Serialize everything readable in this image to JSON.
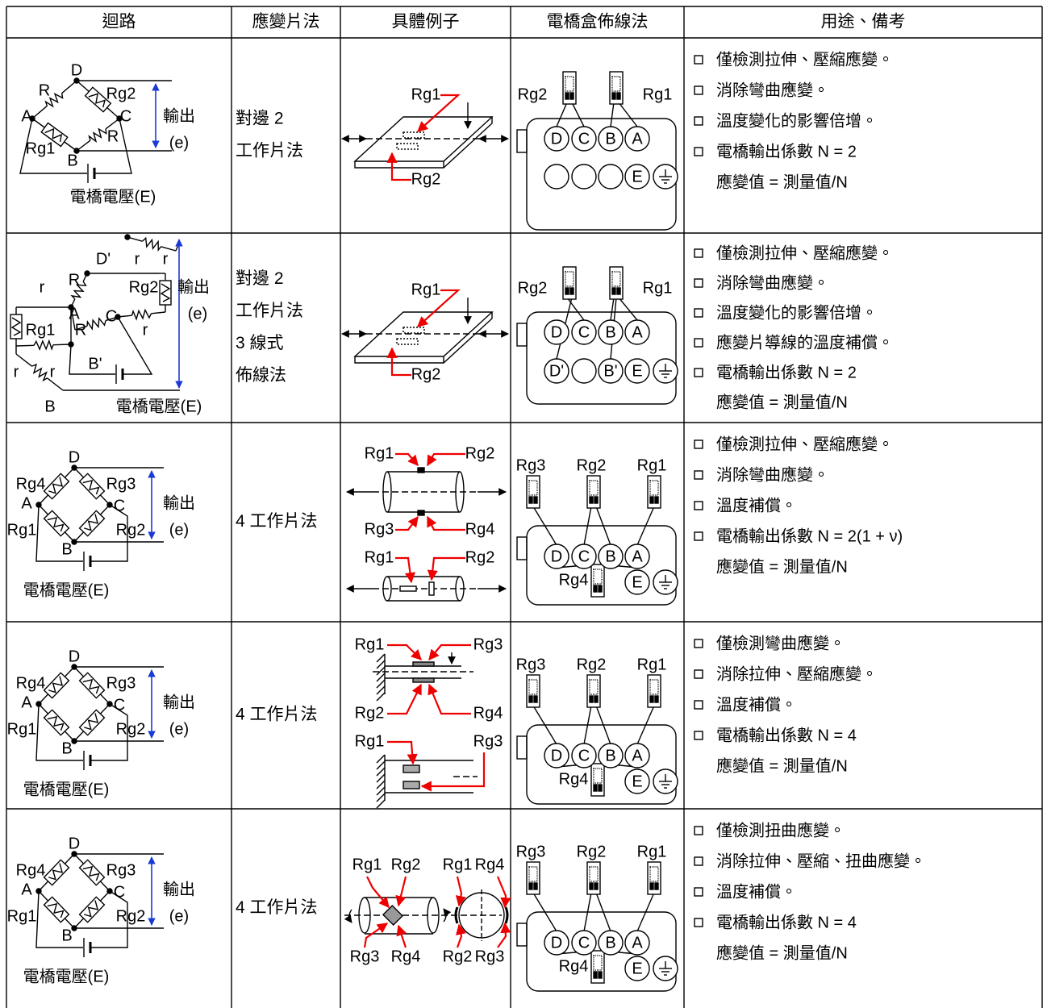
{
  "table": {
    "headers": [
      "迴路",
      "應變片法",
      "具體例子",
      "電橋盒佈線法",
      "用途、備考"
    ],
    "rows": [
      {
        "circuit": [
          "D",
          "R",
          "Rg2",
          "A",
          "C",
          "輸出",
          "Rg1",
          "R",
          "(e)",
          "B",
          "電橋電壓(E)"
        ],
        "method": [
          "對邊 2",
          "工作片法"
        ],
        "example": [
          "Rg1",
          "Rg2"
        ],
        "wiring": [
          "Rg2",
          "Rg1",
          "D",
          "C",
          "B",
          "A",
          "E"
        ],
        "notes": [
          "僅檢測拉伸、壓縮應變。",
          "消除彎曲應變。",
          "溫度變化的影響倍增。",
          "電橋輸出係數 N = 2"
        ],
        "formula": "應變值 = 測量值/N"
      },
      {
        "circuit": [
          "D'",
          "r",
          "r",
          "r",
          "R",
          "Rg2",
          "輸出",
          "A",
          "C",
          "(e)",
          "Rg1",
          "R",
          "r",
          "B'",
          "r",
          "r",
          "B",
          "電橋電壓(E)"
        ],
        "method": [
          "對邊 2",
          "工作片法",
          "3 線式",
          "佈線法"
        ],
        "example": [
          "Rg1",
          "Rg2"
        ],
        "wiring": [
          "Rg2",
          "Rg1",
          "D",
          "C",
          "B",
          "A",
          "D'",
          "B'",
          "E"
        ],
        "notes": [
          "僅檢測拉伸、壓縮應變。",
          "消除彎曲應變。",
          "溫度變化的影響倍增。",
          "應變片導線的溫度補償。",
          "電橋輸出係數 N = 2"
        ],
        "formula": "應變值 = 測量值/N"
      },
      {
        "circuit": [
          "D",
          "Rg4",
          "Rg3",
          "A",
          "C",
          "輸出",
          "Rg1",
          "Rg2",
          "(e)",
          "B",
          "電橋電壓(E)"
        ],
        "method": [
          "4 工作片法"
        ],
        "example": [
          "Rg1",
          "Rg2",
          "Rg3",
          "Rg4",
          "Rg1",
          "Rg2"
        ],
        "wiring": [
          "Rg3",
          "Rg2",
          "Rg1",
          "D",
          "C",
          "B",
          "A",
          "Rg4",
          "E"
        ],
        "notes": [
          "僅檢測拉伸、壓縮應變。",
          "消除彎曲應變。",
          "溫度補償。",
          "電橋輸出係數 N = 2(1 + ν)"
        ],
        "formula": "應變值 = 測量值/N"
      },
      {
        "circuit": [
          "D",
          "Rg4",
          "Rg3",
          "A",
          "C",
          "輸出",
          "Rg1",
          "Rg2",
          "(e)",
          "B",
          "電橋電壓(E)"
        ],
        "method": [
          "4 工作片法"
        ],
        "example": [
          "Rg1",
          "Rg3",
          "Rg2",
          "Rg4",
          "Rg1",
          "Rg3"
        ],
        "wiring": [
          "Rg3",
          "Rg2",
          "Rg1",
          "D",
          "C",
          "B",
          "A",
          "Rg4",
          "E"
        ],
        "notes": [
          "僅檢測彎曲應變。",
          "消除拉伸、壓縮應變。",
          "溫度補償。",
          "電橋輸出係數 N = 4"
        ],
        "formula": "應變值 = 測量值/N"
      },
      {
        "circuit": [
          "D",
          "Rg4",
          "Rg3",
          "A",
          "C",
          "輸出",
          "Rg1",
          "Rg2",
          "(e)",
          "B",
          "電橋電壓(E)"
        ],
        "method": [
          "4 工作片法"
        ],
        "example": [
          "Rg1",
          "Rg2",
          "Rg1",
          "Rg4",
          "Rg3",
          "Rg4",
          "Rg2",
          "Rg3"
        ],
        "wiring": [
          "Rg3",
          "Rg2",
          "Rg1",
          "D",
          "C",
          "B",
          "A",
          "Rg4",
          "E"
        ],
        "notes": [
          "僅檢測扭曲應變。",
          "消除拉伸、壓縮、扭曲應變。",
          "溫度補償。",
          "電橋輸出係數 N = 4"
        ],
        "formula": "應變值 = 測量值/N"
      }
    ]
  }
}
